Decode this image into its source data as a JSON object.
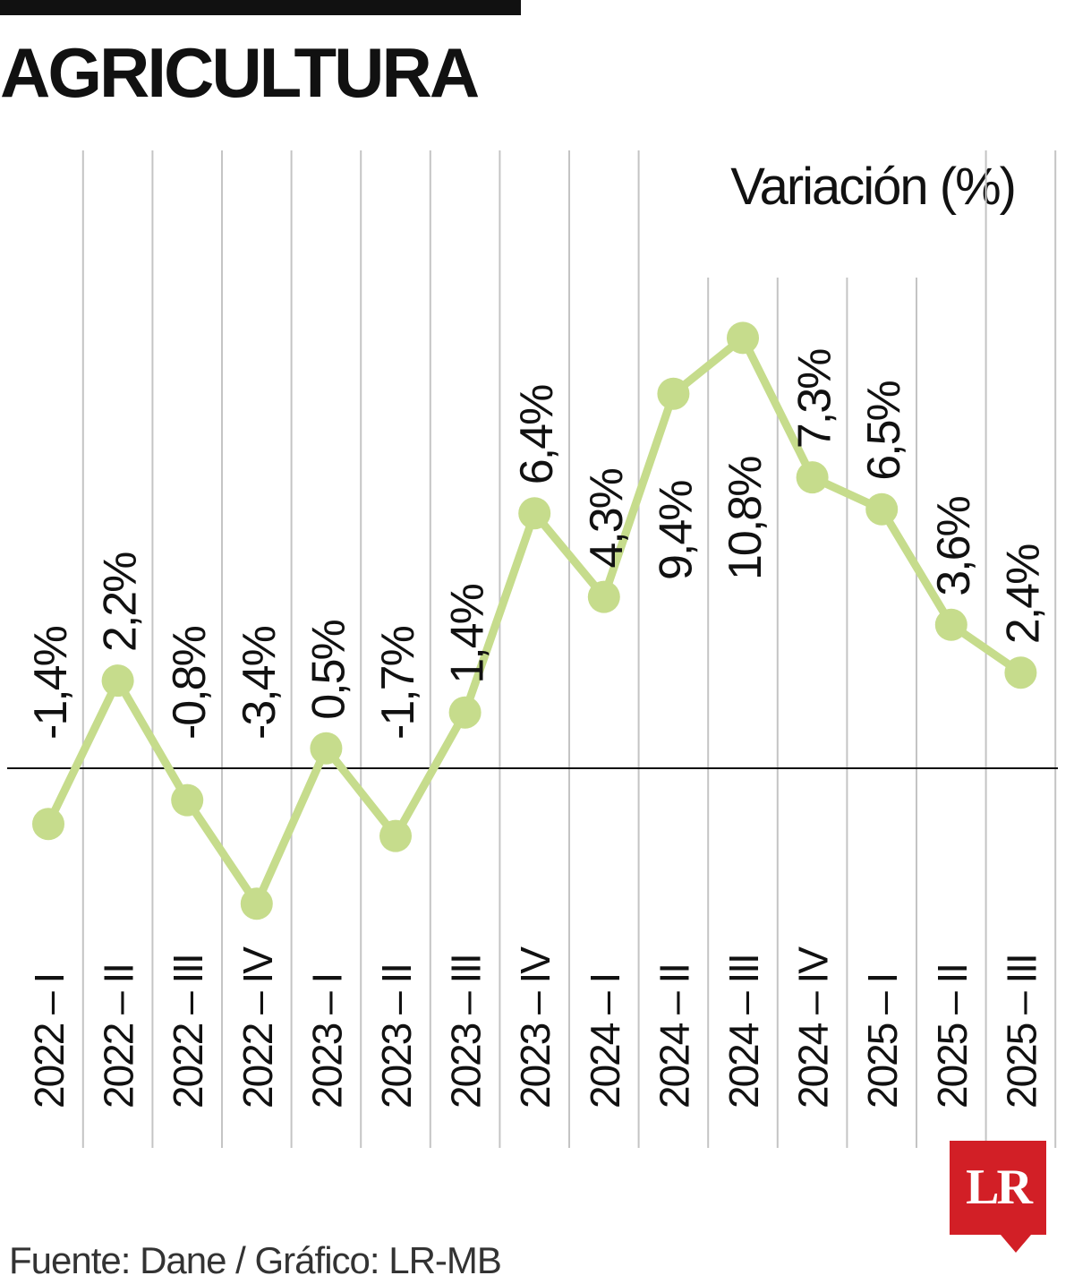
{
  "header": {
    "title": "AGRICULTURA"
  },
  "chart_data": {
    "type": "line",
    "title": "AGRICULTURA",
    "ylabel": "Variación (%)",
    "xlabel": "",
    "categories": [
      "2022 – I",
      "2022 – II",
      "2022 – III",
      "2022 – IV",
      "2023 – I",
      "2023 – II",
      "2023 – III",
      "2023 – IV",
      "2024 – I",
      "2024 – II",
      "2024 – III",
      "2024 – IV",
      "2025 – I",
      "2025 – II",
      "2025 – III"
    ],
    "series": [
      {
        "values": [
          -1.4,
          2.2,
          -0.8,
          -3.4,
          0.5,
          -1.7,
          1.4,
          6.4,
          4.3,
          9.4,
          10.8,
          7.3,
          6.5,
          3.6,
          2.4
        ]
      }
    ],
    "data_labels": [
      "-1,4%",
      "2,2%",
      "-0,8%",
      "-3,4%",
      "0,5%",
      "-1,7%",
      "1,4%",
      "6,4%",
      "4,3%",
      "9,4%",
      "10,8%",
      "7,3%",
      "6,5%",
      "3,6%",
      "2,4%"
    ],
    "ylim": [
      -4,
      12
    ],
    "grid": true,
    "line_color": "#c6dc8c",
    "axis_color": "#111111",
    "grid_color": "#c4c4c4"
  },
  "footer": {
    "source": "Fuente: Dane / Gráfico: LR-MB",
    "logo_text": "LR",
    "logo_color": "#d21f26"
  }
}
